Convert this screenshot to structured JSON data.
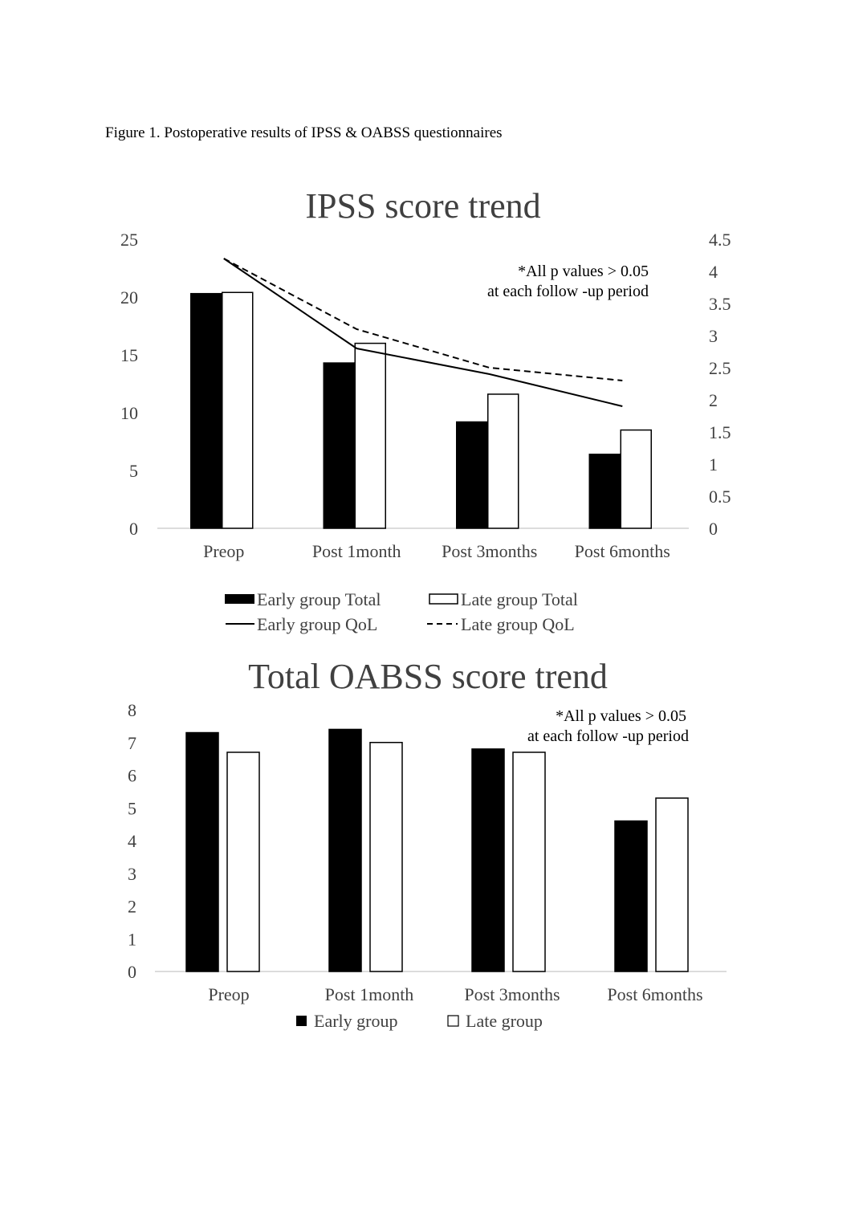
{
  "caption": "Figure 1. Postoperative results of IPSS & OABSS questionnaires",
  "chart_data": [
    {
      "type": "bar",
      "title": "IPSS score trend",
      "annotation": [
        "*All p values > 0.05",
        "at each follow -up period"
      ],
      "categories": [
        "Preop",
        "Post 1month",
        "Post 3months",
        "Post 6months"
      ],
      "ylim": [
        0,
        25
      ],
      "yticks": [
        "0",
        "5",
        "10",
        "15",
        "20",
        "25"
      ],
      "y2lim": [
        0,
        4.5
      ],
      "y2ticks": [
        "0",
        "0.5",
        "1",
        "1.5",
        "2",
        "2.5",
        "3",
        "3.5",
        "4",
        "4.5"
      ],
      "series": [
        {
          "name": "Early group Total",
          "kind": "bar",
          "fill": "#000000",
          "values": [
            20.3,
            14.3,
            9.2,
            6.4
          ]
        },
        {
          "name": "Late group Total",
          "kind": "bar",
          "fill": "#ffffff",
          "values": [
            20.4,
            16.0,
            11.6,
            8.5
          ]
        },
        {
          "name": "Early group QoL",
          "kind": "line",
          "axis": "right",
          "dash": "solid",
          "values": [
            4.2,
            2.8,
            2.4,
            1.9
          ]
        },
        {
          "name": "Late group QoL",
          "kind": "line",
          "axis": "right",
          "dash": "dashed",
          "values": [
            4.2,
            3.1,
            2.5,
            2.3
          ]
        }
      ],
      "legend": "bottom"
    },
    {
      "type": "bar",
      "title": "Total OABSS score trend",
      "annotation": [
        "*All p values > 0.05",
        "at each follow -up period"
      ],
      "categories": [
        "Preop",
        "Post 1month",
        "Post 3months",
        "Post 6months"
      ],
      "ylim": [
        0,
        8
      ],
      "yticks": [
        "0",
        "1",
        "2",
        "3",
        "4",
        "5",
        "6",
        "7",
        "8"
      ],
      "series": [
        {
          "name": "Early group",
          "kind": "bar",
          "fill": "#000000",
          "values": [
            7.3,
            7.4,
            6.8,
            4.6
          ]
        },
        {
          "name": "Late group",
          "kind": "bar",
          "fill": "#ffffff",
          "values": [
            6.7,
            7.0,
            6.7,
            5.3
          ]
        }
      ],
      "legend": "bottom"
    }
  ]
}
